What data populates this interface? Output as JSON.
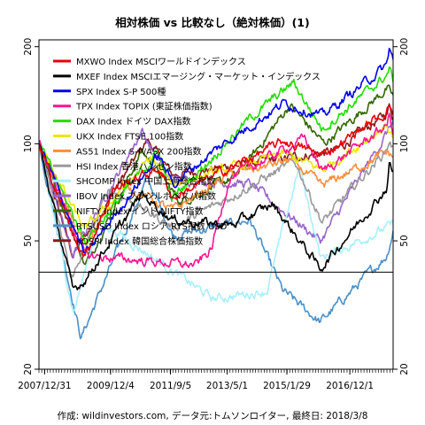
{
  "chart_data": {
    "type": "line",
    "title": "相対株価 vs 比較なし（絶対株価）(1)",
    "footer": "作成: wildinvestors.com, データ元:トムソンロイター, 最終日: 2018/3/8",
    "yscale": "log",
    "ylim": [
      20,
      210
    ],
    "y_ticks": [
      20,
      50,
      100,
      200
    ],
    "x_range": [
      "2007-11-01",
      "2018-03-08"
    ],
    "x_ticks": [
      {
        "date": "2007-12-31",
        "label": "2007/12/31"
      },
      {
        "date": "2009-12-04",
        "label": "2009/12/4"
      },
      {
        "date": "2011-09-05",
        "label": "2011/9/5"
      },
      {
        "date": "2013-05-01",
        "label": "2013/5/1"
      },
      {
        "date": "2015-01-29",
        "label": "2015/1/29"
      },
      {
        "date": "2016-12-01",
        "label": "2016/12/1"
      }
    ],
    "reference_line": 40,
    "legend_position": "top-left",
    "series": [
      {
        "name": "MXWO Index MSCIワールドインデックス",
        "color": "#e8000b",
        "points": [
          [
            "2007-11-01",
            100
          ],
          [
            "2008-10-27",
            52
          ],
          [
            "2009-03-09",
            45
          ],
          [
            "2009-12-31",
            72
          ],
          [
            "2011-05-01",
            84
          ],
          [
            "2011-10-03",
            68
          ],
          [
            "2012-12-31",
            80
          ],
          [
            "2014-12-31",
            102
          ],
          [
            "2016-02-11",
            92
          ],
          [
            "2017-12-31",
            126
          ],
          [
            "2018-01-26",
            133
          ],
          [
            "2018-03-08",
            124
          ]
        ]
      },
      {
        "name": "MXEF Index MSCIエマージング・マーケット・インデックス",
        "color": "#000000",
        "points": [
          [
            "2007-11-01",
            100
          ],
          [
            "2008-10-27",
            35
          ],
          [
            "2009-03-09",
            38
          ],
          [
            "2010-11-01",
            70
          ],
          [
            "2011-10-03",
            58
          ],
          [
            "2013-06-24",
            56
          ],
          [
            "2014-09-01",
            65
          ],
          [
            "2016-01-21",
            41
          ],
          [
            "2017-12-31",
            73
          ],
          [
            "2018-01-26",
            87
          ],
          [
            "2018-03-08",
            81
          ]
        ]
      },
      {
        "name": "SPX Index S-P 500種",
        "color": "#0000ee",
        "points": [
          [
            "2007-11-01",
            100
          ],
          [
            "2009-03-09",
            45
          ],
          [
            "2011-04-29",
            92
          ],
          [
            "2011-10-03",
            75
          ],
          [
            "2012-12-31",
            96
          ],
          [
            "2014-12-31",
            134
          ],
          [
            "2016-02-11",
            122
          ],
          [
            "2017-12-31",
            175
          ],
          [
            "2018-01-26",
            198
          ],
          [
            "2018-03-08",
            182
          ]
        ]
      },
      {
        "name": "TPX Index TOPIX (東証株価指数)",
        "color": "#ff1493",
        "points": [
          [
            "2007-11-01",
            100
          ],
          [
            "2009-03-09",
            45
          ],
          [
            "2012-06-04",
            42
          ],
          [
            "2012-11-14",
            47
          ],
          [
            "2013-05-22",
            78
          ],
          [
            "2015-08-10",
            104
          ],
          [
            "2016-02-12",
            82
          ],
          [
            "2017-12-31",
            114
          ],
          [
            "2018-01-23",
            122
          ],
          [
            "2018-03-08",
            109
          ]
        ]
      },
      {
        "name": "DAX Index ドイツ DAX指数",
        "color": "#22dd00",
        "points": [
          [
            "2007-11-01",
            100
          ],
          [
            "2009-03-09",
            50
          ],
          [
            "2011-05-02",
            95
          ],
          [
            "2011-09-12",
            67
          ],
          [
            "2013-12-31",
            120
          ],
          [
            "2015-04-10",
            155
          ],
          [
            "2016-02-11",
            111
          ],
          [
            "2017-12-31",
            163
          ],
          [
            "2018-01-23",
            171
          ],
          [
            "2018-03-08",
            158
          ]
        ]
      },
      {
        "name": "UKX Index FTSE 100指数",
        "color": "#e8e800",
        "points": [
          [
            "2007-11-01",
            100
          ],
          [
            "2009-03-03",
            54
          ],
          [
            "2011-02-08",
            90
          ],
          [
            "2011-10-03",
            75
          ],
          [
            "2014-12-31",
            93
          ],
          [
            "2016-02-11",
            83
          ],
          [
            "2017-12-31",
            114
          ],
          [
            "2018-03-08",
            105
          ]
        ]
      },
      {
        "name": "AS51 Index S-P/ASX 200指数",
        "color": "#ff8c3a",
        "points": [
          [
            "2007-11-01",
            100
          ],
          [
            "2009-03-06",
            48
          ],
          [
            "2010-04-15",
            75
          ],
          [
            "2011-09-26",
            62
          ],
          [
            "2013-05-14",
            80
          ],
          [
            "2015-03-02",
            89
          ],
          [
            "2016-02-08",
            74
          ],
          [
            "2017-12-31",
            94
          ],
          [
            "2018-03-08",
            91
          ]
        ]
      },
      {
        "name": "HSI Index 香港ハンセン指数",
        "color": "#999999",
        "points": [
          [
            "2007-11-01",
            100
          ],
          [
            "2008-10-27",
            38
          ],
          [
            "2009-11-17",
            73
          ],
          [
            "2011-10-04",
            55
          ],
          [
            "2015-04-27",
            88
          ],
          [
            "2016-02-12",
            57
          ],
          [
            "2017-12-31",
            96
          ],
          [
            "2018-01-26",
            103
          ],
          [
            "2018-03-08",
            96
          ]
        ]
      },
      {
        "name": "SHCOMP Index 中国上海総合指数",
        "color": "#a8f0ff",
        "points": [
          [
            "2007-11-01",
            100
          ],
          [
            "2008-11-04",
            30
          ],
          [
            "2009-08-04",
            58
          ],
          [
            "2012-12-03",
            33
          ],
          [
            "2014-06-30",
            35
          ],
          [
            "2015-06-12",
            85
          ],
          [
            "2016-01-28",
            44
          ],
          [
            "2017-12-31",
            55
          ],
          [
            "2018-03-08",
            56
          ]
        ]
      },
      {
        "name": "IBOV Index ブラジルボベスパ指数",
        "color": "#9966cc",
        "points": [
          [
            "2007-11-01",
            100
          ],
          [
            "2008-10-27",
            45
          ],
          [
            "2010-11-04",
            110
          ],
          [
            "2011-08-08",
            78
          ],
          [
            "2013-12-31",
            75
          ],
          [
            "2016-01-26",
            50
          ],
          [
            "2017-12-31",
            108
          ],
          [
            "2018-03-08",
            118
          ]
        ]
      },
      {
        "name": "NIFTY Index インド NIFTY指数",
        "color": "#336600",
        "points": [
          [
            "2007-11-01",
            100
          ],
          [
            "2009-03-09",
            42
          ],
          [
            "2010-11-05",
            95
          ],
          [
            "2011-12-20",
            66
          ],
          [
            "2013-08-28",
            80
          ],
          [
            "2015-03-03",
            132
          ],
          [
            "2016-02-29",
            100
          ],
          [
            "2017-12-31",
            148
          ],
          [
            "2018-03-08",
            140
          ]
        ]
      },
      {
        "name": "RTSUSD Index ロシア RTS指数 USD",
        "color": "#4a90c8",
        "points": [
          [
            "2007-11-01",
            100
          ],
          [
            "2009-01-23",
            25
          ],
          [
            "2010-12-31",
            78
          ],
          [
            "2011-10-04",
            52
          ],
          [
            "2013-12-31",
            58
          ],
          [
            "2014-12-16",
            35
          ],
          [
            "2016-01-20",
            28
          ],
          [
            "2017-12-31",
            45
          ],
          [
            "2018-03-08",
            54
          ]
        ]
      },
      {
        "name": "KOSPI Index 韓国総合株価指数",
        "color": "#8b1a1a",
        "points": [
          [
            "2007-11-01",
            100
          ],
          [
            "2008-10-27",
            45
          ],
          [
            "2010-12-31",
            103
          ],
          [
            "2011-09-26",
            80
          ],
          [
            "2016-06-27",
            95
          ],
          [
            "2017-12-31",
            124
          ],
          [
            "2018-01-29",
            132
          ],
          [
            "2018-03-08",
            120
          ]
        ]
      }
    ]
  }
}
